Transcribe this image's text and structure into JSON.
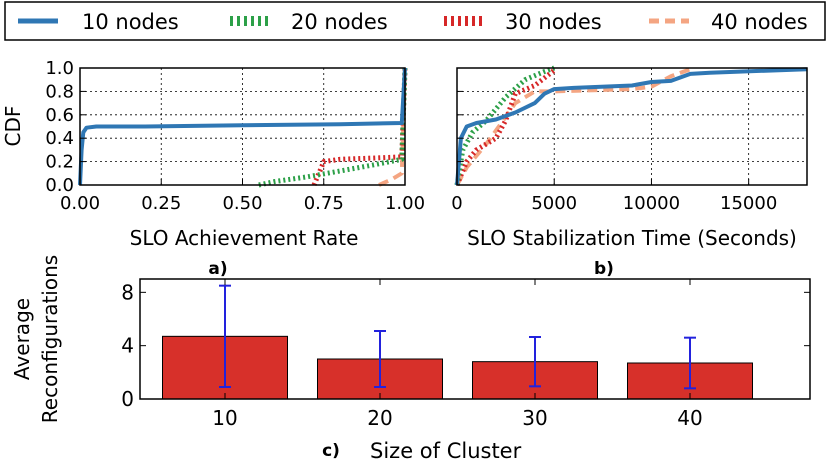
{
  "legend": {
    "entries": [
      {
        "label": "10 nodes",
        "color": "#2f77b4",
        "style": "solid"
      },
      {
        "label": "20 nodes",
        "color": "#2ca048",
        "style": "dotted"
      },
      {
        "label": "30 nodes",
        "color": "#d62728",
        "style": "dotted"
      },
      {
        "label": "40 nodes",
        "color": "#f4a582",
        "style": "dashed"
      }
    ]
  },
  "chart_data": [
    {
      "id": "a",
      "type": "line",
      "panel_label": "a)",
      "xlabel": "SLO Achievement Rate",
      "ylabel": "CDF",
      "xlim": [
        0,
        1.0
      ],
      "ylim": [
        0,
        1.0
      ],
      "xticks": [
        "0.00",
        "0.25",
        "0.50",
        "0.75",
        "1.00"
      ],
      "yticks": [
        "0.0",
        "0.2",
        "0.4",
        "0.6",
        "0.8",
        "1.0"
      ],
      "grid": true,
      "series": [
        {
          "name": "10 nodes",
          "x": [
            0,
            0.005,
            0.01,
            0.02,
            0.05,
            0.2,
            0.5,
            0.8,
            0.99,
            1.0
          ],
          "y": [
            0,
            0.3,
            0.45,
            0.49,
            0.5,
            0.5,
            0.51,
            0.52,
            0.53,
            1.0
          ]
        },
        {
          "name": "20 nodes",
          "x": [
            0.55,
            0.6,
            0.7,
            0.8,
            0.9,
            0.99,
            1.0
          ],
          "y": [
            0,
            0.03,
            0.07,
            0.12,
            0.17,
            0.22,
            1.0
          ]
        },
        {
          "name": "30 nodes",
          "x": [
            0.72,
            0.75,
            0.8,
            0.9,
            0.99,
            1.0
          ],
          "y": [
            0,
            0.2,
            0.22,
            0.23,
            0.24,
            1.0
          ]
        },
        {
          "name": "40 nodes",
          "x": [
            0.92,
            0.96,
            0.99,
            1.0
          ],
          "y": [
            0,
            0.05,
            0.1,
            1.0
          ]
        }
      ]
    },
    {
      "id": "b",
      "type": "line",
      "panel_label": "b)",
      "xlabel": "SLO Stabilization Time (Seconds)",
      "ylabel": "",
      "xlim": [
        0,
        18000
      ],
      "ylim": [
        0,
        1.0
      ],
      "xticks": [
        "0",
        "5000",
        "10000",
        "15000"
      ],
      "yticks": [
        "0.0",
        "0.2",
        "0.4",
        "0.6",
        "0.8",
        "1.0"
      ],
      "grid": true,
      "series": [
        {
          "name": "10 nodes",
          "x": [
            0,
            200,
            500,
            1000,
            2000,
            3000,
            4000,
            4500,
            5000,
            6000,
            9000,
            10000,
            11000,
            12000,
            13000,
            18000
          ],
          "y": [
            0,
            0.4,
            0.5,
            0.53,
            0.56,
            0.62,
            0.7,
            0.78,
            0.82,
            0.83,
            0.85,
            0.88,
            0.89,
            0.95,
            0.96,
            0.99
          ]
        },
        {
          "name": "20 nodes",
          "x": [
            0,
            300,
            800,
            1500,
            2500,
            3500,
            4500,
            5000
          ],
          "y": [
            0,
            0.3,
            0.45,
            0.55,
            0.75,
            0.9,
            0.97,
            1.0
          ]
        },
        {
          "name": "30 nodes",
          "x": [
            0,
            500,
            1000,
            2000,
            2500,
            3000,
            4000,
            5000
          ],
          "y": [
            0,
            0.2,
            0.3,
            0.4,
            0.55,
            0.78,
            0.85,
            0.98
          ]
        },
        {
          "name": "40 nodes",
          "x": [
            0,
            500,
            1500,
            2500,
            3000,
            4000,
            5000,
            7000,
            9000,
            10000,
            11000,
            12000
          ],
          "y": [
            0,
            0.15,
            0.35,
            0.58,
            0.7,
            0.8,
            0.8,
            0.81,
            0.82,
            0.84,
            0.93,
            0.99
          ]
        }
      ]
    },
    {
      "id": "c",
      "type": "bar",
      "panel_label": "c)",
      "xlabel": "Size of Cluster",
      "ylabel": [
        "Average",
        "Reconfigurations"
      ],
      "categories": [
        "10",
        "20",
        "30",
        "40"
      ],
      "values": [
        4.7,
        3.0,
        2.8,
        2.7
      ],
      "errors": [
        3.8,
        2.1,
        1.85,
        1.9
      ],
      "ylim": [
        0,
        9
      ],
      "yticks": [
        "0",
        "4",
        "8"
      ],
      "bar_color": "#d7302a",
      "error_color": "#2222dd",
      "grid": false
    }
  ]
}
